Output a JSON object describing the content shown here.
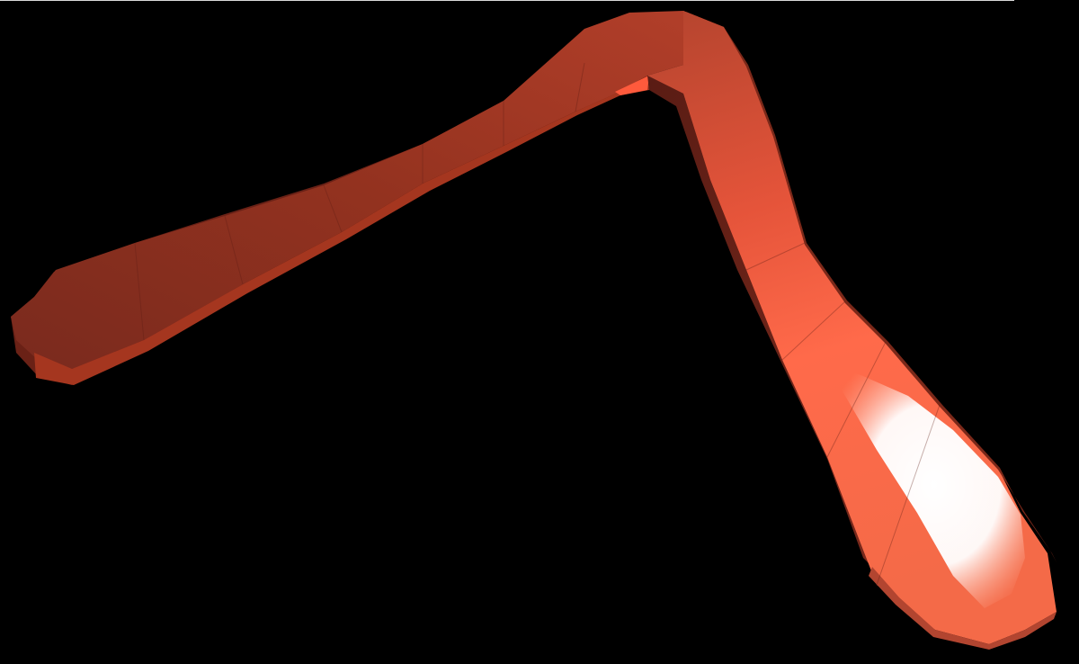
{
  "scene": {
    "background_color": "#000000",
    "object": "boomerang",
    "object_colors": {
      "base": "#b8402c",
      "dark": "#6e2218",
      "mid": "#d4523a",
      "bright": "#ff6a48",
      "highlight": "#ffffff"
    }
  }
}
